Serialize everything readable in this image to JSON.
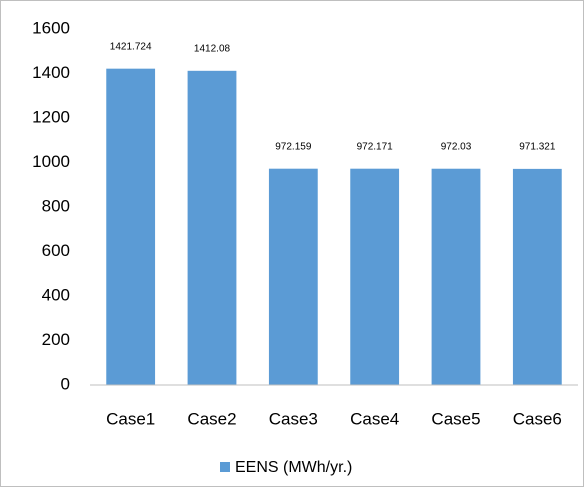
{
  "chart_data": {
    "type": "bar",
    "categories": [
      "Case1",
      "Case2",
      "Case3",
      "Case4",
      "Case5",
      "Case6"
    ],
    "series": [
      {
        "name": "EENS (MWh/yr.)",
        "color": "#5b9bd5",
        "values": [
          1421.724,
          1412.08,
          972.159,
          972.171,
          972.03,
          971.321
        ]
      }
    ],
    "ylim": [
      0,
      1600
    ],
    "yticks": [
      0,
      200,
      400,
      600,
      800,
      1000,
      1200,
      1400,
      1600
    ],
    "grid": false,
    "legend": "bottom"
  }
}
